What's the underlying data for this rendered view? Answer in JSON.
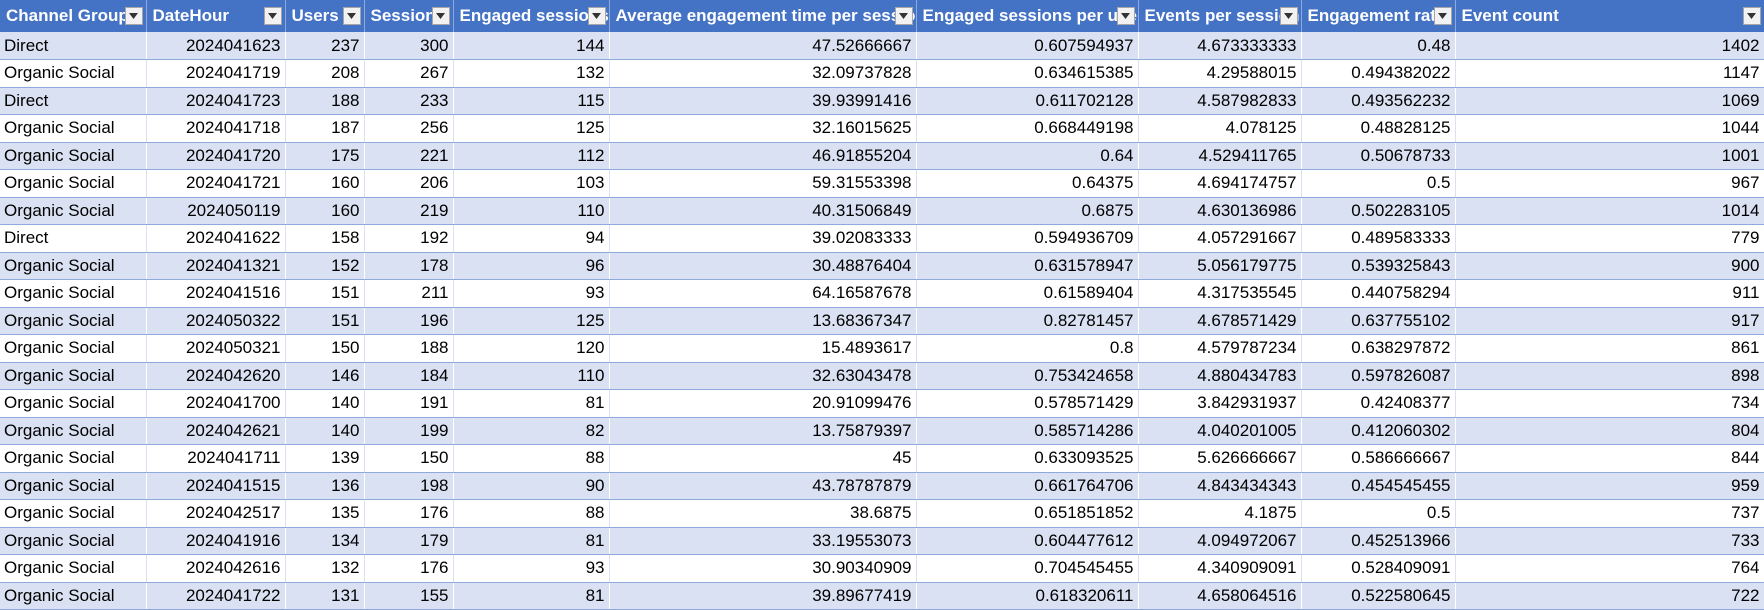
{
  "columns": [
    {
      "label": "Channel Group"
    },
    {
      "label": "DateHour"
    },
    {
      "label": "Users"
    },
    {
      "label": "Sessions"
    },
    {
      "label": "Engaged sessions"
    },
    {
      "label": "Average engagement time per session"
    },
    {
      "label": "Engaged sessions per user"
    },
    {
      "label": "Events per session"
    },
    {
      "label": "Engagement rate"
    },
    {
      "label": "Event count"
    }
  ],
  "icons": {
    "filter": "filter-dropdown-icon"
  },
  "colors": {
    "header_bg": "#4472c4",
    "band_bg": "#d9e1f2"
  },
  "rows": [
    [
      "Direct",
      "2024041623",
      "237",
      "300",
      "144",
      "47.52666667",
      "0.607594937",
      "4.673333333",
      "0.48",
      "1402"
    ],
    [
      "Organic Social",
      "2024041719",
      "208",
      "267",
      "132",
      "32.09737828",
      "0.634615385",
      "4.29588015",
      "0.494382022",
      "1147"
    ],
    [
      "Direct",
      "2024041723",
      "188",
      "233",
      "115",
      "39.93991416",
      "0.611702128",
      "4.587982833",
      "0.493562232",
      "1069"
    ],
    [
      "Organic Social",
      "2024041718",
      "187",
      "256",
      "125",
      "32.16015625",
      "0.668449198",
      "4.078125",
      "0.48828125",
      "1044"
    ],
    [
      "Organic Social",
      "2024041720",
      "175",
      "221",
      "112",
      "46.91855204",
      "0.64",
      "4.529411765",
      "0.50678733",
      "1001"
    ],
    [
      "Organic Social",
      "2024041721",
      "160",
      "206",
      "103",
      "59.31553398",
      "0.64375",
      "4.694174757",
      "0.5",
      "967"
    ],
    [
      "Organic Social",
      "2024050119",
      "160",
      "219",
      "110",
      "40.31506849",
      "0.6875",
      "4.630136986",
      "0.502283105",
      "1014"
    ],
    [
      "Direct",
      "2024041622",
      "158",
      "192",
      "94",
      "39.02083333",
      "0.594936709",
      "4.057291667",
      "0.489583333",
      "779"
    ],
    [
      "Organic Social",
      "2024041321",
      "152",
      "178",
      "96",
      "30.48876404",
      "0.631578947",
      "5.056179775",
      "0.539325843",
      "900"
    ],
    [
      "Organic Social",
      "2024041516",
      "151",
      "211",
      "93",
      "64.16587678",
      "0.61589404",
      "4.317535545",
      "0.440758294",
      "911"
    ],
    [
      "Organic Social",
      "2024050322",
      "151",
      "196",
      "125",
      "13.68367347",
      "0.82781457",
      "4.678571429",
      "0.637755102",
      "917"
    ],
    [
      "Organic Social",
      "2024050321",
      "150",
      "188",
      "120",
      "15.4893617",
      "0.8",
      "4.579787234",
      "0.638297872",
      "861"
    ],
    [
      "Organic Social",
      "2024042620",
      "146",
      "184",
      "110",
      "32.63043478",
      "0.753424658",
      "4.880434783",
      "0.597826087",
      "898"
    ],
    [
      "Organic Social",
      "2024041700",
      "140",
      "191",
      "81",
      "20.91099476",
      "0.578571429",
      "3.842931937",
      "0.42408377",
      "734"
    ],
    [
      "Organic Social",
      "2024042621",
      "140",
      "199",
      "82",
      "13.75879397",
      "0.585714286",
      "4.040201005",
      "0.412060302",
      "804"
    ],
    [
      "Organic Social",
      "2024041711",
      "139",
      "150",
      "88",
      "45",
      "0.633093525",
      "5.626666667",
      "0.586666667",
      "844"
    ],
    [
      "Organic Social",
      "2024041515",
      "136",
      "198",
      "90",
      "43.78787879",
      "0.661764706",
      "4.843434343",
      "0.454545455",
      "959"
    ],
    [
      "Organic Social",
      "2024042517",
      "135",
      "176",
      "88",
      "38.6875",
      "0.651851852",
      "4.1875",
      "0.5",
      "737"
    ],
    [
      "Organic Social",
      "2024041916",
      "134",
      "179",
      "81",
      "33.19553073",
      "0.604477612",
      "4.094972067",
      "0.452513966",
      "733"
    ],
    [
      "Organic Social",
      "2024042616",
      "132",
      "176",
      "93",
      "30.90340909",
      "0.704545455",
      "4.340909091",
      "0.528409091",
      "764"
    ],
    [
      "Organic Social",
      "2024041722",
      "131",
      "155",
      "81",
      "39.89677419",
      "0.618320611",
      "4.658064516",
      "0.522580645",
      "722"
    ]
  ]
}
